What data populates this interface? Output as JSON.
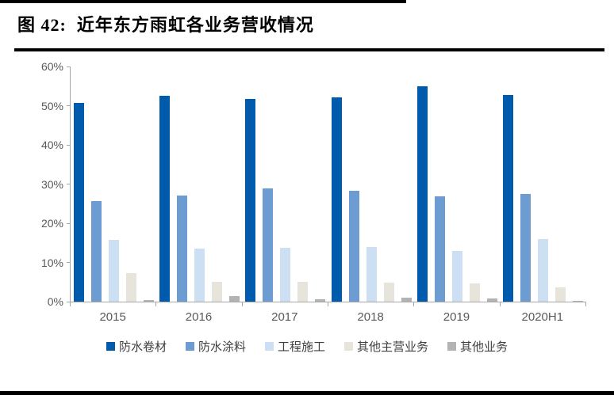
{
  "title": "图 42:  近年东方雨虹各业务营收情况",
  "colors": {
    "axis_line": "#A6A6A6",
    "axis_label": "#595959",
    "legend_text": "#3F3F3F",
    "rule_black": "#000000"
  },
  "chart_data": {
    "type": "bar",
    "title": "近年东方雨虹各业务营收情况",
    "categories": [
      "2015",
      "2016",
      "2017",
      "2018",
      "2019",
      "2020H1"
    ],
    "series": [
      {
        "name": "防水卷材",
        "color": "#005BAC",
        "values": [
          50.7,
          52.6,
          51.8,
          52.2,
          55.0,
          52.8
        ]
      },
      {
        "name": "防水涂料",
        "color": "#6D9CD2",
        "values": [
          25.7,
          27.1,
          28.8,
          28.3,
          26.8,
          27.5
        ]
      },
      {
        "name": "工程施工",
        "color": "#CDDFF2",
        "values": [
          15.7,
          13.6,
          13.8,
          14.0,
          12.9,
          16.0
        ]
      },
      {
        "name": "其他主营业务",
        "color": "#E7E4DB",
        "values": [
          7.3,
          5.0,
          5.1,
          4.9,
          4.6,
          3.7
        ]
      },
      {
        "name": "其他业务",
        "color": "#B3B3B3",
        "values": [
          0.4,
          1.5,
          0.6,
          1.0,
          0.8,
          0.3
        ]
      }
    ],
    "xlabel": "",
    "ylabel": "",
    "ylim": [
      0,
      60
    ],
    "ytick_step": 10,
    "ytick_labels": [
      "0%",
      "10%",
      "20%",
      "30%",
      "40%",
      "50%",
      "60%"
    ],
    "grid": false,
    "legend_position": "bottom"
  }
}
